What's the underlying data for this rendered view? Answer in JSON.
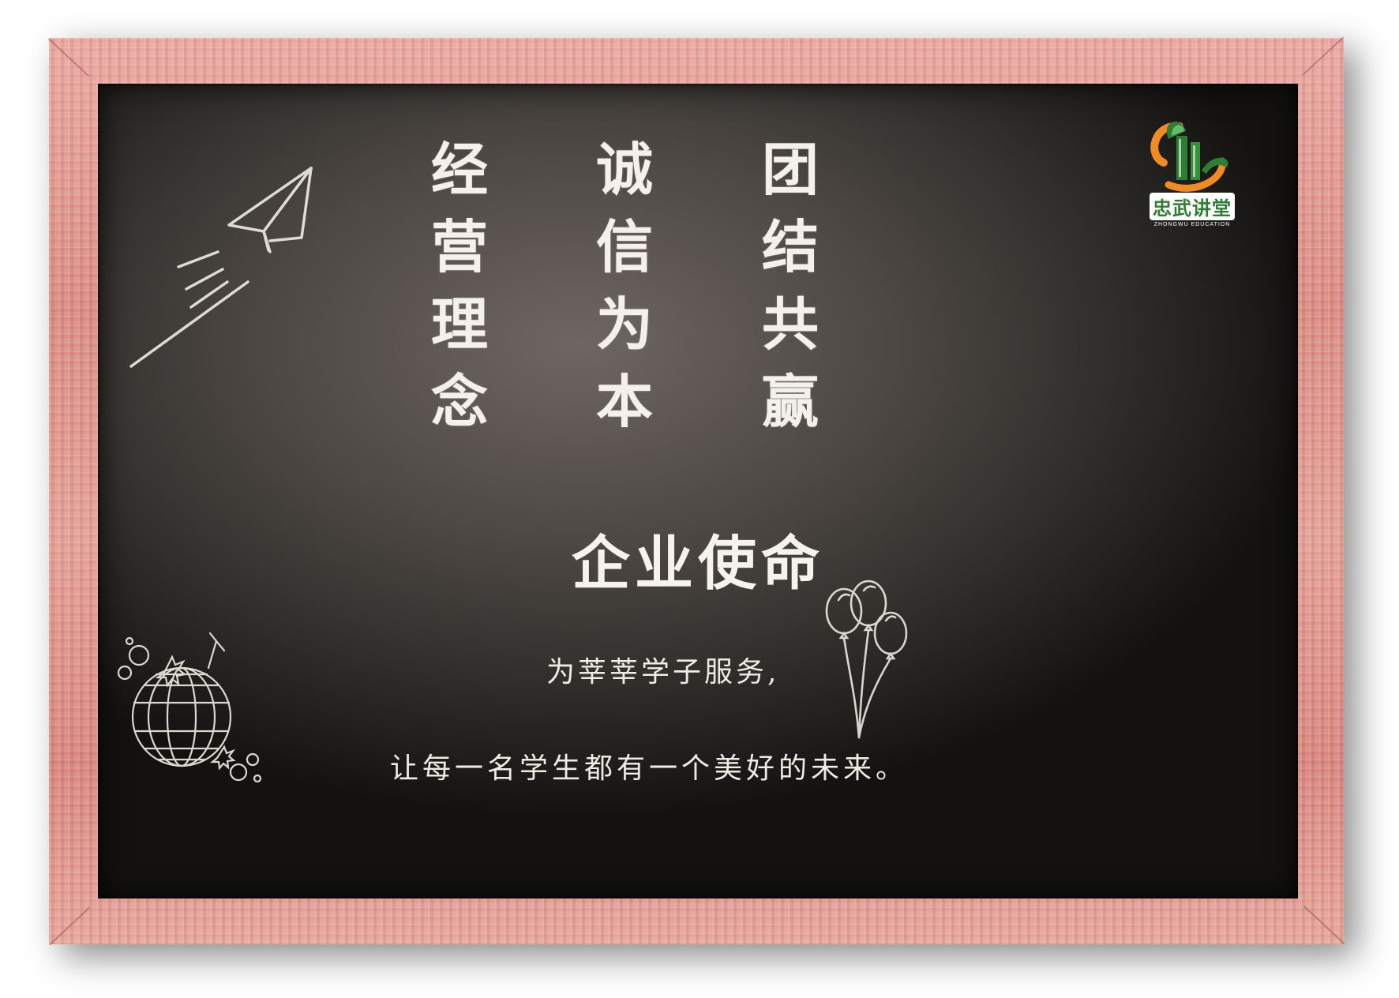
{
  "logo": {
    "name_cn": "忠武讲堂",
    "name_en": "ZHONGWU EDUCATION"
  },
  "motto": {
    "columns": [
      [
        "经",
        "营",
        "理",
        "念"
      ],
      [
        "诚",
        "信",
        "为",
        "本"
      ],
      [
        "团",
        "结",
        "共",
        "赢"
      ]
    ]
  },
  "mission": {
    "title": "企业使命",
    "line_1": "为莘莘学子服务,",
    "line_2": "让每一名学生都有一个美好的未来。"
  },
  "icons": [
    "paper-plane-icon",
    "balloons-icon",
    "disco-ball-icon",
    "zhongwu-logo-icon"
  ],
  "colors": {
    "frame": "#e09a90",
    "board": "#4d4844",
    "chalk": "#f4f1ea",
    "logo_green": "#2e7d32",
    "logo_orange": "#f08a24"
  }
}
